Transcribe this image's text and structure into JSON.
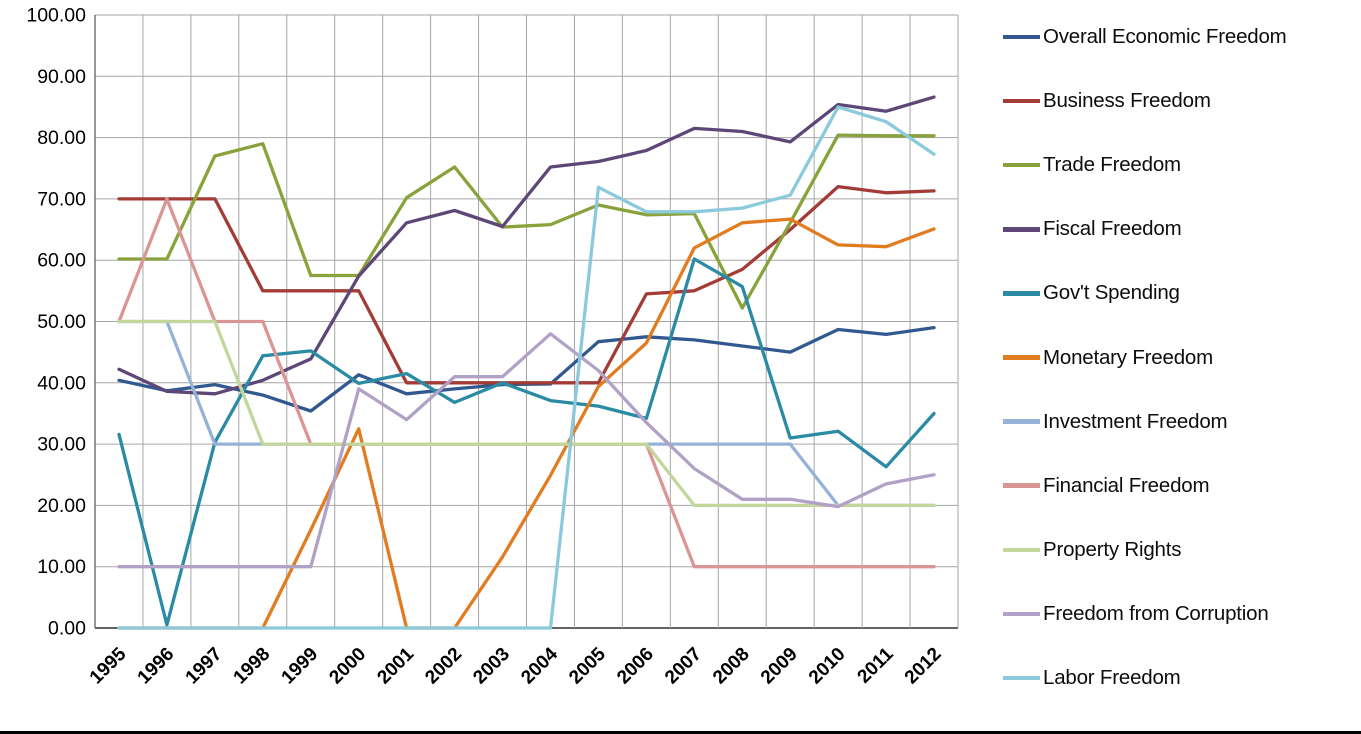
{
  "chart_data": {
    "type": "line",
    "title": "",
    "xlabel": "",
    "ylabel": "",
    "ylim": [
      0,
      100
    ],
    "y_tick_step": 10,
    "grid": true,
    "legend_position": "right",
    "x_categories": [
      "1995",
      "1996",
      "1997",
      "1998",
      "1999",
      "2000",
      "2001",
      "2002",
      "2003",
      "2004",
      "2005",
      "2006",
      "2007",
      "2008",
      "2009",
      "2010",
      "2011",
      "2012"
    ],
    "y_ticks": [
      "0.00",
      "10.00",
      "20.00",
      "30.00",
      "40.00",
      "50.00",
      "60.00",
      "70.00",
      "80.00",
      "90.00",
      "100.00"
    ],
    "series": [
      {
        "name": "Overall Economic Freedom",
        "color": "#31588F",
        "values": [
          40.4,
          38.7,
          39.7,
          38.0,
          35.4,
          41.3,
          38.2,
          39.0,
          39.7,
          39.8,
          46.7,
          47.5,
          47.0,
          46.0,
          45.0,
          48.7,
          47.9,
          49.0
        ]
      },
      {
        "name": "Business Freedom",
        "color": "#A33C36",
        "values": [
          70,
          70,
          70,
          55,
          55,
          55,
          40,
          40,
          40,
          40,
          40,
          54.5,
          55,
          58.5,
          65,
          72,
          71,
          71.3
        ]
      },
      {
        "name": "Trade Freedom",
        "color": "#89A23C",
        "values": [
          60.2,
          60.2,
          77,
          79,
          57.5,
          57.5,
          70.2,
          75.2,
          65.4,
          65.8,
          69,
          67.4,
          67.6,
          52.2,
          66.1,
          80.4,
          80.3,
          80.3
        ]
      },
      {
        "name": "Fiscal Freedom",
        "color": "#5D4776",
        "values": [
          42.2,
          38.6,
          38.2,
          40.4,
          43.9,
          57.4,
          66.1,
          68.1,
          65.5,
          75.2,
          76.1,
          77.9,
          81.5,
          81,
          79.3,
          85.4,
          84.3,
          86.6
        ]
      },
      {
        "name": "Gov't Spending",
        "color": "#2B8BA5",
        "values": [
          31.6,
          0.5,
          30.3,
          44.4,
          45.2,
          39.9,
          41.5,
          36.8,
          40,
          37.1,
          36.2,
          34.2,
          60.2,
          55.7,
          31,
          32.1,
          26.3,
          35
        ]
      },
      {
        "name": "Monetary Freedom",
        "color": "#E27C20",
        "values": [
          0,
          0,
          0,
          0,
          16,
          32.5,
          0,
          0,
          11.6,
          24.9,
          39.4,
          46.5,
          62,
          66.1,
          66.7,
          62.5,
          62.2,
          65.1
        ]
      },
      {
        "name": "Investment Freedom",
        "color": "#95B3D7",
        "values": [
          50,
          50,
          30,
          30,
          30,
          30,
          30,
          30,
          30,
          30,
          30,
          30,
          30,
          30,
          30,
          20,
          20,
          20
        ]
      },
      {
        "name": "Financial Freedom",
        "color": "#D99694",
        "values": [
          50,
          70,
          50,
          50,
          30,
          30,
          30,
          30,
          30,
          30,
          30,
          30,
          10,
          10,
          10,
          10,
          10,
          10
        ]
      },
      {
        "name": "Property Rights",
        "color": "#C3D69B",
        "values": [
          50,
          50,
          50,
          30,
          30,
          30,
          30,
          30,
          30,
          30,
          30,
          30,
          20,
          20,
          20,
          20,
          20,
          20
        ]
      },
      {
        "name": "Freedom from Corruption",
        "color": "#B2A1C7",
        "values": [
          10,
          10,
          10,
          10,
          10,
          39,
          34,
          41,
          41,
          48,
          42,
          33.5,
          26,
          21,
          21,
          19.8,
          23.5,
          25
        ]
      },
      {
        "name": "Labor Freedom",
        "color": "#8BC9DC",
        "values": [
          0,
          0,
          0,
          0,
          0,
          0,
          0,
          0,
          0,
          0,
          71.9,
          67.9,
          67.9,
          68.5,
          70.6,
          85,
          82.6,
          77.3
        ]
      }
    ]
  }
}
